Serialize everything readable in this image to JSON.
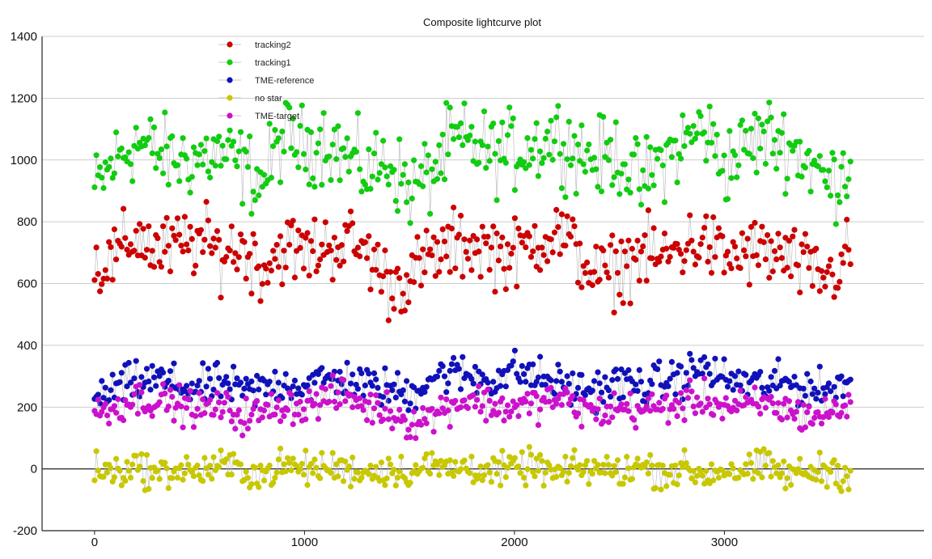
{
  "chart_data": {
    "type": "scatter",
    "title": "Composite lightcurve plot",
    "xlabel": "",
    "ylabel": "",
    "xlim": [
      -250,
      3950
    ],
    "ylim": [
      -200,
      1400
    ],
    "x_ticks": [
      0,
      1000,
      2000,
      3000
    ],
    "y_ticks": [
      -200,
      0,
      200,
      400,
      600,
      800,
      1000,
      1200,
      1400
    ],
    "grid": "horizontal",
    "legend_position": "top-left",
    "x_range": [
      0,
      3600
    ],
    "series": [
      {
        "name": "tracking2",
        "color": "#cc0000",
        "x": [
          0,
          100,
          200,
          300,
          400,
          500,
          600,
          700,
          800,
          900,
          1000,
          1100,
          1200,
          1300,
          1400,
          1500,
          1600,
          1700,
          1800,
          1900,
          2000,
          2100,
          2200,
          2300,
          2400,
          2500,
          2600,
          2700,
          2800,
          2900,
          3000,
          3100,
          3200,
          3300,
          3400,
          3500,
          3600
        ],
        "y": [
          650,
          680,
          760,
          700,
          720,
          740,
          700,
          720,
          650,
          720,
          700,
          720,
          740,
          700,
          600,
          620,
          680,
          720,
          730,
          710,
          690,
          740,
          770,
          700,
          620,
          650,
          700,
          680,
          720,
          740,
          680,
          700,
          700,
          680,
          640,
          620,
          700
        ]
      },
      {
        "name": "tracking1",
        "color": "#11cc11",
        "x": [
          0,
          100,
          200,
          300,
          400,
          500,
          600,
          700,
          800,
          900,
          1000,
          1100,
          1200,
          1300,
          1400,
          1500,
          1600,
          1700,
          1800,
          1900,
          2000,
          2100,
          2200,
          2300,
          2400,
          2500,
          2600,
          2700,
          2800,
          2900,
          3000,
          3100,
          3200,
          3300,
          3400,
          3500,
          3600
        ],
        "y": [
          900,
          1000,
          1060,
          1020,
          1000,
          1010,
          1020,
          980,
          930,
          1080,
          1040,
          1070,
          1010,
          960,
          1000,
          900,
          950,
          1060,
          1050,
          1020,
          1030,
          1050,
          1080,
          1030,
          1000,
          1020,
          920,
          1000,
          1050,
          1110,
          980,
          1040,
          1080,
          1050,
          1000,
          920,
          1000
        ]
      },
      {
        "name": "TME-reference",
        "color": "#1111bb",
        "x": [
          0,
          100,
          200,
          300,
          400,
          500,
          600,
          700,
          800,
          900,
          1000,
          1100,
          1200,
          1300,
          1400,
          1500,
          1600,
          1700,
          1800,
          1900,
          2000,
          2100,
          2200,
          2300,
          2400,
          2500,
          2600,
          2700,
          2800,
          2900,
          3000,
          3100,
          3200,
          3300,
          3400,
          3500,
          3600
        ],
        "y": [
          220,
          260,
          280,
          290,
          270,
          260,
          280,
          250,
          260,
          280,
          270,
          290,
          290,
          270,
          260,
          240,
          300,
          310,
          300,
          290,
          320,
          300,
          280,
          260,
          260,
          280,
          270,
          280,
          300,
          330,
          290,
          280,
          270,
          280,
          260,
          250,
          300
        ]
      },
      {
        "name": "no star",
        "color": "#c8c800",
        "x": [
          0,
          100,
          200,
          300,
          400,
          500,
          600,
          700,
          800,
          900,
          1000,
          1100,
          1200,
          1300,
          1400,
          1500,
          1600,
          1700,
          1800,
          1900,
          2000,
          2100,
          2200,
          2300,
          2400,
          2500,
          2600,
          2700,
          2800,
          2900,
          3000,
          3100,
          3200,
          3300,
          3400,
          3500,
          3600
        ],
        "y": [
          0,
          -10,
          10,
          -20,
          0,
          -10,
          10,
          0,
          -20,
          10,
          0,
          5,
          0,
          -10,
          0,
          -10,
          10,
          0,
          10,
          -10,
          0,
          10,
          -20,
          0,
          0,
          -10,
          10,
          -10,
          0,
          -20,
          0,
          -10,
          10,
          -20,
          -10,
          0,
          -20
        ]
      },
      {
        "name": "TME-target",
        "color": "#cc11cc",
        "x": [
          0,
          100,
          200,
          300,
          400,
          500,
          600,
          700,
          800,
          900,
          1000,
          1100,
          1200,
          1300,
          1400,
          1500,
          1600,
          1700,
          1800,
          1900,
          2000,
          2100,
          2200,
          2300,
          2400,
          2500,
          2600,
          2700,
          2800,
          2900,
          3000,
          3100,
          3200,
          3300,
          3400,
          3500,
          3600
        ],
        "y": [
          180,
          200,
          230,
          220,
          210,
          190,
          200,
          170,
          180,
          210,
          200,
          230,
          240,
          200,
          190,
          150,
          170,
          210,
          230,
          200,
          200,
          210,
          230,
          200,
          180,
          200,
          190,
          200,
          210,
          230,
          200,
          200,
          210,
          190,
          170,
          180,
          210
        ]
      }
    ]
  }
}
